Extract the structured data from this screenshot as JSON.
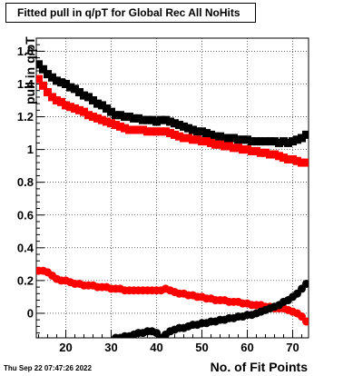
{
  "chart_data": {
    "type": "scatter",
    "title": "Fitted pull in q/pT for Global Rec All NoHits",
    "xlabel": "No. of Fit Points",
    "ylabel": "pull in q/pT",
    "xlim": [
      13.5,
      73.5
    ],
    "ylim": [
      -0.15,
      1.68
    ],
    "xticks": [
      20,
      30,
      40,
      50,
      60,
      70
    ],
    "yticks": [
      0,
      0.2,
      0.4,
      0.6,
      0.8,
      1,
      1.2,
      1.4,
      1.6
    ],
    "xtick_labels": [
      "20",
      "30",
      "40",
      "50",
      "60",
      "70"
    ],
    "ytick_labels": [
      "0",
      "0.2",
      "0.4",
      "0.6",
      "0.8",
      "1",
      "1.2",
      "1.4",
      "1.6"
    ],
    "grid": true,
    "series": [
      {
        "marker": "square",
        "color": "#000000",
        "x": [
          14,
          15,
          16,
          17,
          18,
          19,
          20,
          21,
          22,
          23,
          24,
          25,
          26,
          27,
          28,
          29,
          30,
          31,
          32,
          33,
          34,
          35,
          36,
          37,
          38,
          39,
          40,
          41,
          42,
          43,
          44,
          45,
          46,
          47,
          48,
          49,
          50,
          51,
          52,
          53,
          54,
          55,
          56,
          57,
          58,
          59,
          60,
          61,
          62,
          63,
          64,
          65,
          66,
          67,
          68,
          69,
          70,
          71,
          72,
          73
        ],
        "y": [
          1.52,
          1.49,
          1.46,
          1.44,
          1.42,
          1.41,
          1.4,
          1.38,
          1.37,
          1.35,
          1.33,
          1.32,
          1.3,
          1.28,
          1.27,
          1.25,
          1.23,
          1.21,
          1.21,
          1.2,
          1.2,
          1.19,
          1.19,
          1.18,
          1.18,
          1.18,
          1.17,
          1.18,
          1.18,
          1.17,
          1.16,
          1.15,
          1.14,
          1.13,
          1.12,
          1.11,
          1.11,
          1.1,
          1.09,
          1.08,
          1.08,
          1.07,
          1.07,
          1.07,
          1.06,
          1.06,
          1.06,
          1.05,
          1.05,
          1.05,
          1.05,
          1.05,
          1.05,
          1.04,
          1.05,
          1.04,
          1.05,
          1.06,
          1.07,
          1.09
        ]
      },
      {
        "marker": "square",
        "color": "#ff0000",
        "x": [
          14,
          15,
          16,
          17,
          18,
          19,
          20,
          21,
          22,
          23,
          24,
          25,
          26,
          27,
          28,
          29,
          30,
          31,
          32,
          33,
          34,
          35,
          36,
          37,
          38,
          39,
          40,
          41,
          42,
          43,
          44,
          45,
          46,
          47,
          48,
          49,
          50,
          51,
          52,
          53,
          54,
          55,
          56,
          57,
          58,
          59,
          60,
          61,
          62,
          63,
          64,
          65,
          66,
          67,
          68,
          69,
          70,
          71,
          72,
          73
        ],
        "y": [
          1.43,
          1.39,
          1.35,
          1.32,
          1.3,
          1.29,
          1.27,
          1.26,
          1.25,
          1.24,
          1.23,
          1.21,
          1.2,
          1.19,
          1.18,
          1.17,
          1.16,
          1.15,
          1.14,
          1.13,
          1.12,
          1.12,
          1.12,
          1.12,
          1.11,
          1.11,
          1.11,
          1.11,
          1.11,
          1.1,
          1.09,
          1.08,
          1.07,
          1.07,
          1.06,
          1.06,
          1.05,
          1.05,
          1.04,
          1.03,
          1.03,
          1.02,
          1.02,
          1.01,
          1.01,
          1.0,
          1.0,
          0.99,
          0.99,
          0.98,
          0.98,
          0.97,
          0.97,
          0.96,
          0.95,
          0.94,
          0.94,
          0.93,
          0.92,
          0.92
        ]
      },
      {
        "marker": "circle",
        "color": "#ff0000",
        "x": [
          14,
          15,
          16,
          17,
          18,
          19,
          20,
          21,
          22,
          23,
          24,
          25,
          26,
          27,
          28,
          29,
          30,
          31,
          32,
          33,
          34,
          35,
          36,
          37,
          38,
          39,
          40,
          41,
          42,
          43,
          44,
          45,
          46,
          47,
          48,
          49,
          50,
          51,
          52,
          53,
          54,
          55,
          56,
          57,
          58,
          59,
          60,
          61,
          62,
          63,
          64,
          65,
          66,
          67,
          68,
          69,
          70,
          71,
          72,
          73
        ],
        "y": [
          0.26,
          0.26,
          0.25,
          0.23,
          0.21,
          0.2,
          0.2,
          0.19,
          0.18,
          0.18,
          0.17,
          0.17,
          0.17,
          0.16,
          0.16,
          0.16,
          0.15,
          0.15,
          0.15,
          0.14,
          0.14,
          0.14,
          0.14,
          0.14,
          0.14,
          0.14,
          0.14,
          0.14,
          0.15,
          0.14,
          0.13,
          0.12,
          0.12,
          0.11,
          0.11,
          0.1,
          0.1,
          0.09,
          0.09,
          0.08,
          0.08,
          0.08,
          0.07,
          0.07,
          0.07,
          0.06,
          0.06,
          0.05,
          0.05,
          0.05,
          0.04,
          0.04,
          0.03,
          0.03,
          0.03,
          0.02,
          0.01,
          0.0,
          -0.02,
          -0.05
        ]
      },
      {
        "marker": "circle",
        "color": "#000000",
        "x": [
          31,
          32,
          33,
          34,
          35,
          36,
          37,
          38,
          39,
          40,
          41,
          42,
          43,
          44,
          45,
          46,
          47,
          48,
          49,
          50,
          51,
          52,
          53,
          54,
          55,
          56,
          57,
          58,
          59,
          60,
          61,
          62,
          63,
          64,
          65,
          66,
          67,
          68,
          69,
          70,
          71,
          72,
          73
        ],
        "y": [
          -0.15,
          -0.15,
          -0.14,
          -0.14,
          -0.13,
          -0.12,
          -0.12,
          -0.11,
          -0.11,
          -0.12,
          -0.15,
          -0.13,
          -0.11,
          -0.1,
          -0.09,
          -0.09,
          -0.08,
          -0.07,
          -0.07,
          -0.06,
          -0.06,
          -0.05,
          -0.05,
          -0.04,
          -0.04,
          -0.03,
          -0.03,
          -0.02,
          -0.02,
          -0.01,
          -0.01,
          0.0,
          0.01,
          0.02,
          0.03,
          0.04,
          0.05,
          0.07,
          0.08,
          0.1,
          0.12,
          0.15,
          0.18
        ]
      }
    ],
    "footer": "Thu Sep 22 07:47:26 2022"
  }
}
